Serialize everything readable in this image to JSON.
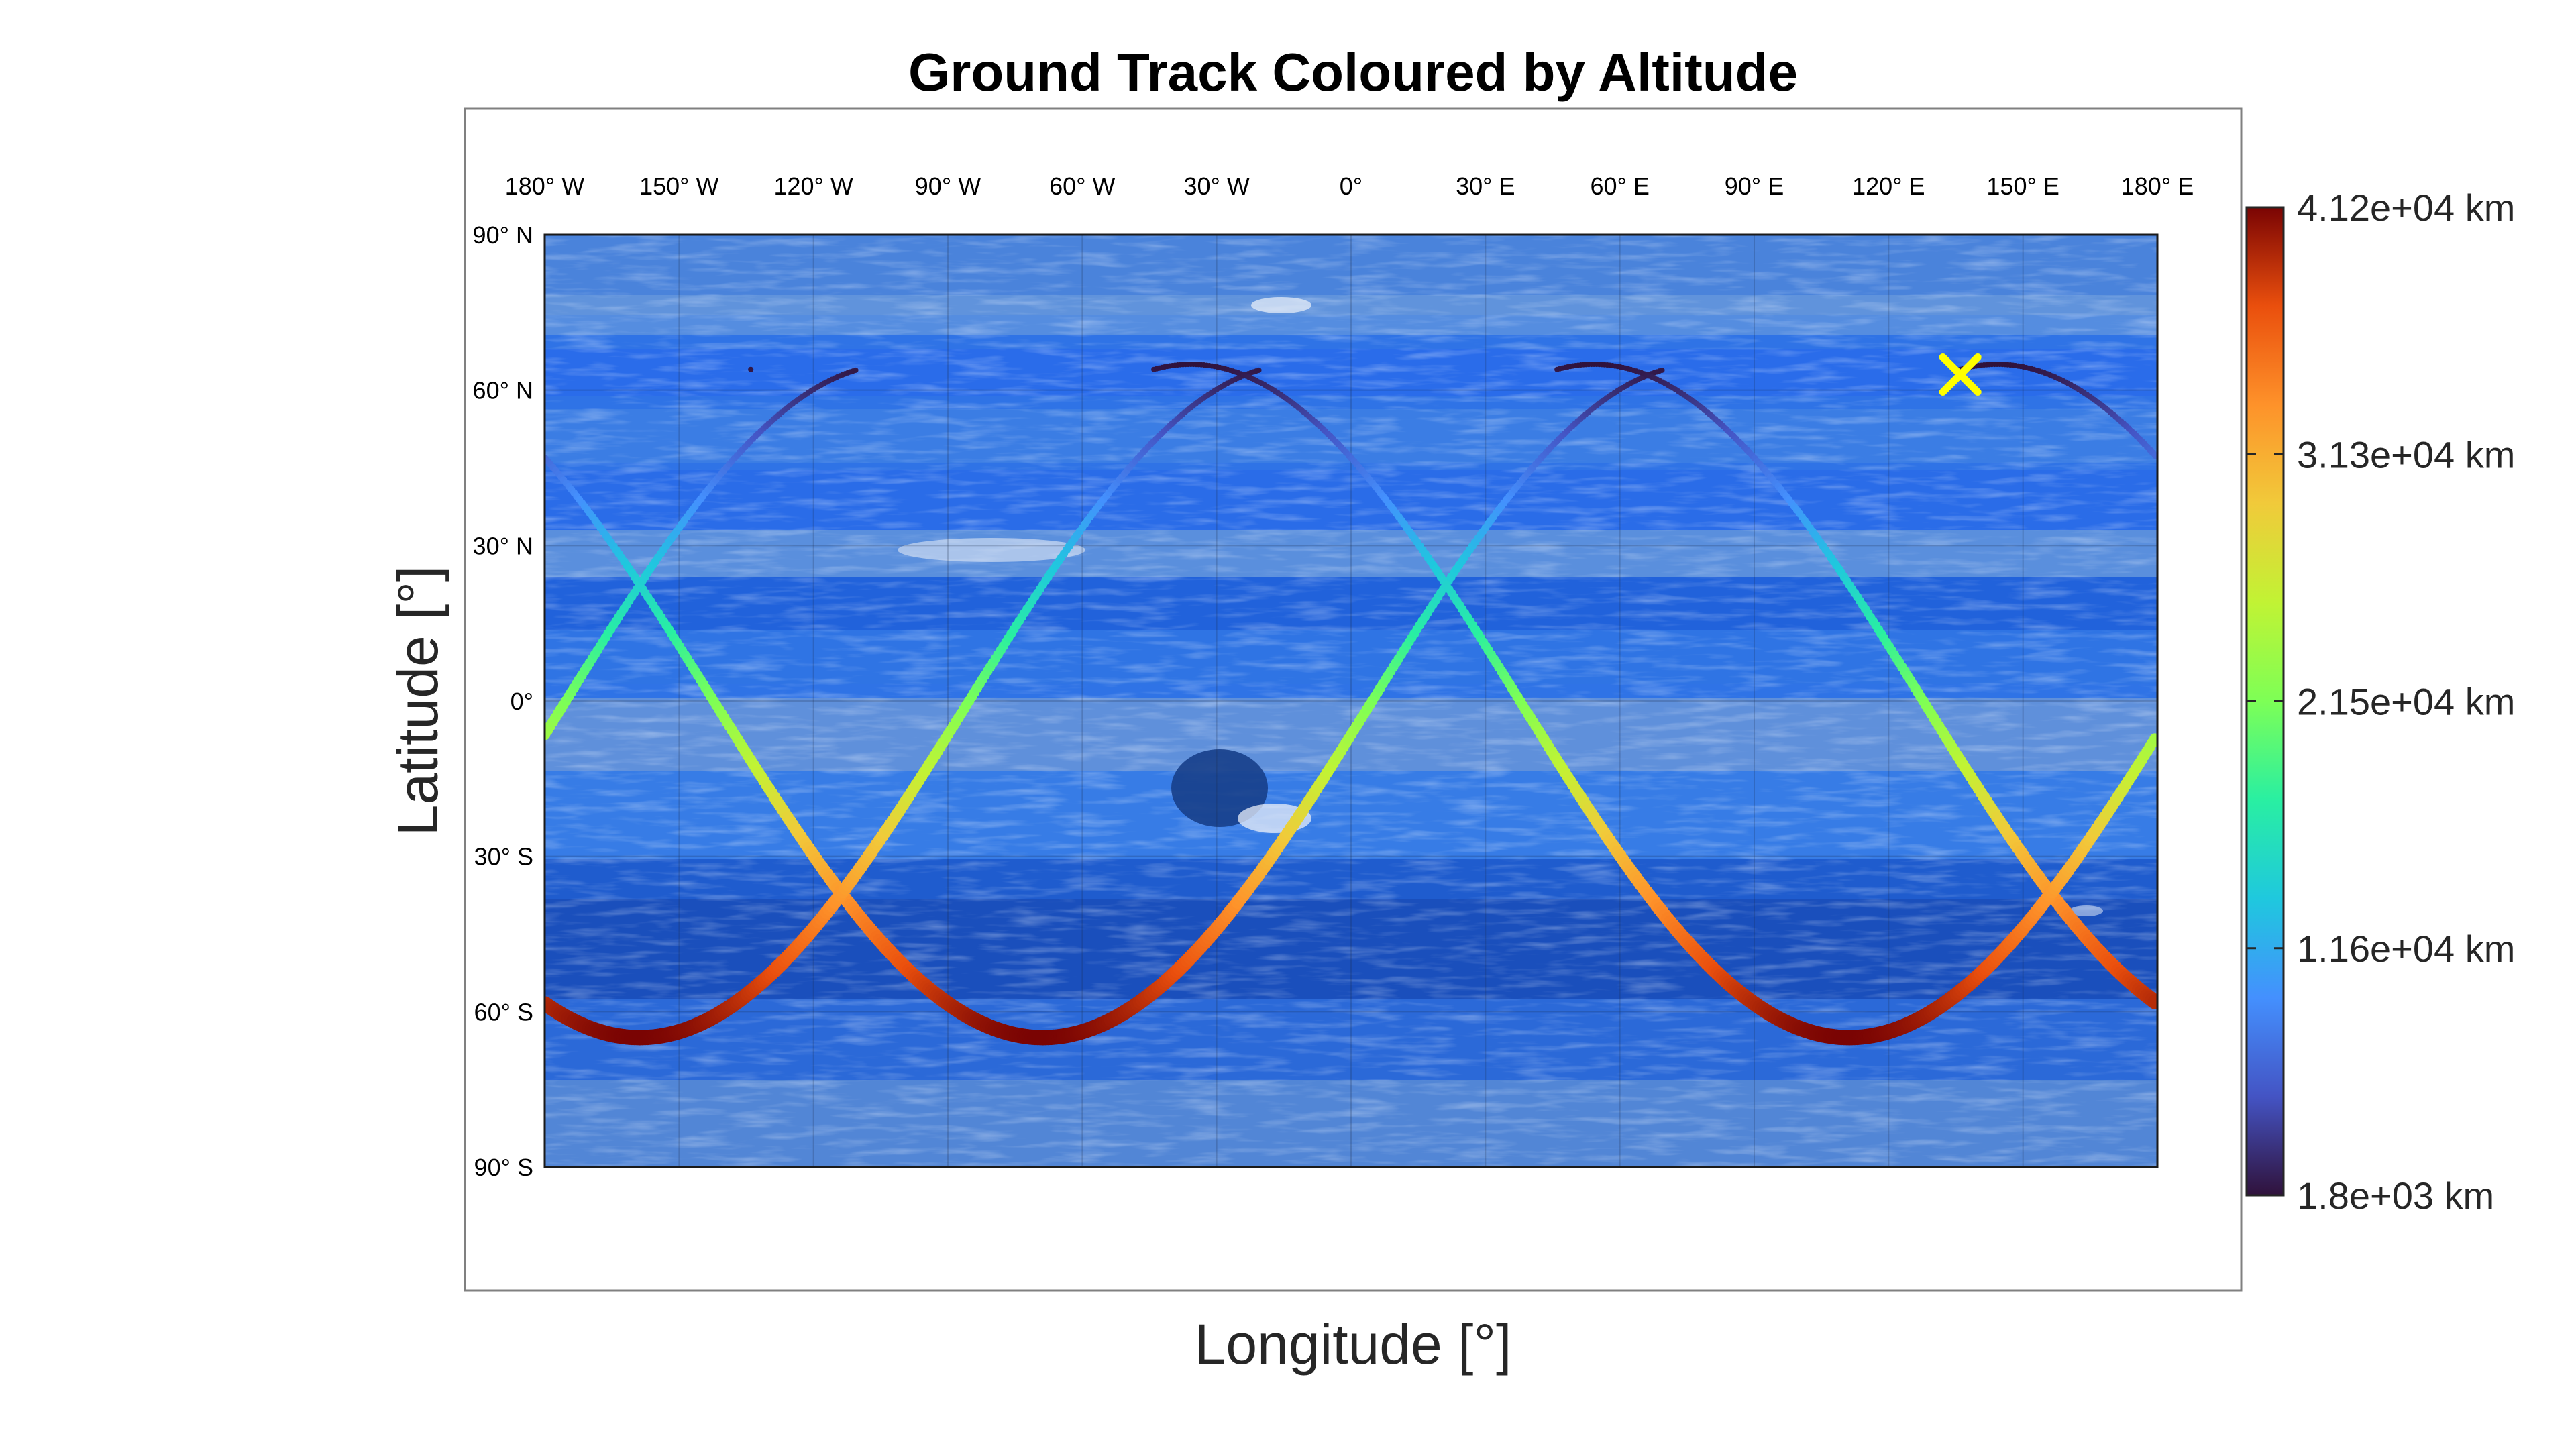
{
  "chart_data": {
    "type": "scatter",
    "title": "Ground Track Coloured by Altitude",
    "xlabel": "Longitude [°]",
    "ylabel": "Latitude [°]",
    "xlim": [
      -180,
      180
    ],
    "ylim": [
      -90,
      90
    ],
    "x_ticks": [
      "180° W",
      "150° W",
      "120° W",
      "90° W",
      "60° W",
      "30° W",
      "0°",
      "30° E",
      "60° E",
      "90° E",
      "120° E",
      "150° E",
      "180° E"
    ],
    "y_ticks": [
      "90° N",
      "60° N",
      "30° N",
      "0°",
      "30° S",
      "60° S",
      "90° S"
    ],
    "grid": true,
    "background_map": "Neptune surface texture (blue bands with Great Dark Spot)",
    "colormap": "turbo",
    "colorbar": {
      "min_km": 1800,
      "max_km": 41200,
      "tick_labels": [
        "4.12e+04 km",
        "3.13e+04 km",
        "2.15e+04 km",
        "1.16e+04 km",
        "1.8e+03 km"
      ]
    },
    "track": {
      "inclination_deg": 65,
      "period_deg_lon": 294,
      "perigee_lat_deg": 64,
      "start_lon_deg": 136,
      "end_lon_deg": 136,
      "lon_shift_per_orbit_deg": -24,
      "orbits": 3
    },
    "marker": {
      "symbol": "×",
      "lon_deg": 136,
      "lat_deg": 63,
      "color": "#ffff00",
      "meaning": "start position"
    }
  }
}
